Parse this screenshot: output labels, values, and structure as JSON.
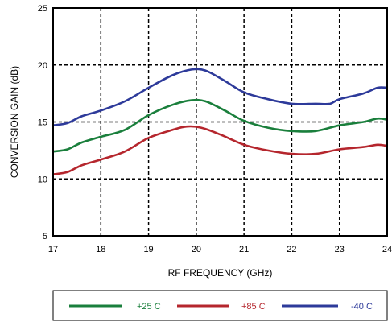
{
  "chart_data": {
    "type": "line",
    "xlabel": "RF FREQUENCY (GHz)",
    "ylabel": "CONVERSION GAIN (dB)",
    "xlim": [
      17,
      24
    ],
    "ylim": [
      5,
      25
    ],
    "x_ticks": [
      17,
      18,
      19,
      20,
      21,
      22,
      23,
      24
    ],
    "y_ticks": [
      5,
      10,
      15,
      20,
      25
    ],
    "grid": "dashed",
    "legend_position": "bottom",
    "series": [
      {
        "name": "+25 C",
        "color": "#1a7f3c",
        "points": [
          [
            17.0,
            12.4
          ],
          [
            17.3,
            12.6
          ],
          [
            17.6,
            13.2
          ],
          [
            18.0,
            13.7
          ],
          [
            18.5,
            14.3
          ],
          [
            19.0,
            15.6
          ],
          [
            19.5,
            16.5
          ],
          [
            19.9,
            16.9
          ],
          [
            20.2,
            16.8
          ],
          [
            20.6,
            16.0
          ],
          [
            21.0,
            15.1
          ],
          [
            21.5,
            14.5
          ],
          [
            22.0,
            14.2
          ],
          [
            22.5,
            14.2
          ],
          [
            23.0,
            14.7
          ],
          [
            23.5,
            15.0
          ],
          [
            23.8,
            15.3
          ],
          [
            24.0,
            15.2
          ]
        ]
      },
      {
        "name": "+85 C",
        "color": "#b5262d",
        "points": [
          [
            17.0,
            10.4
          ],
          [
            17.3,
            10.6
          ],
          [
            17.6,
            11.2
          ],
          [
            18.0,
            11.7
          ],
          [
            18.5,
            12.4
          ],
          [
            19.0,
            13.6
          ],
          [
            19.5,
            14.3
          ],
          [
            19.8,
            14.6
          ],
          [
            20.1,
            14.5
          ],
          [
            20.5,
            13.9
          ],
          [
            21.0,
            13.0
          ],
          [
            21.5,
            12.5
          ],
          [
            22.0,
            12.2
          ],
          [
            22.5,
            12.2
          ],
          [
            23.0,
            12.6
          ],
          [
            23.5,
            12.8
          ],
          [
            23.8,
            13.0
          ],
          [
            24.0,
            12.9
          ]
        ]
      },
      {
        "name": "-40 C",
        "color": "#2d3a9a",
        "points": [
          [
            17.0,
            14.7
          ],
          [
            17.3,
            14.9
          ],
          [
            17.6,
            15.5
          ],
          [
            18.0,
            16.0
          ],
          [
            18.5,
            16.8
          ],
          [
            19.0,
            18.0
          ],
          [
            19.5,
            19.1
          ],
          [
            19.9,
            19.6
          ],
          [
            20.2,
            19.5
          ],
          [
            20.6,
            18.6
          ],
          [
            21.0,
            17.6
          ],
          [
            21.5,
            17.0
          ],
          [
            22.0,
            16.6
          ],
          [
            22.5,
            16.6
          ],
          [
            22.8,
            16.6
          ],
          [
            23.0,
            17.0
          ],
          [
            23.5,
            17.5
          ],
          [
            23.8,
            18.0
          ],
          [
            24.0,
            18.0
          ]
        ]
      }
    ]
  }
}
